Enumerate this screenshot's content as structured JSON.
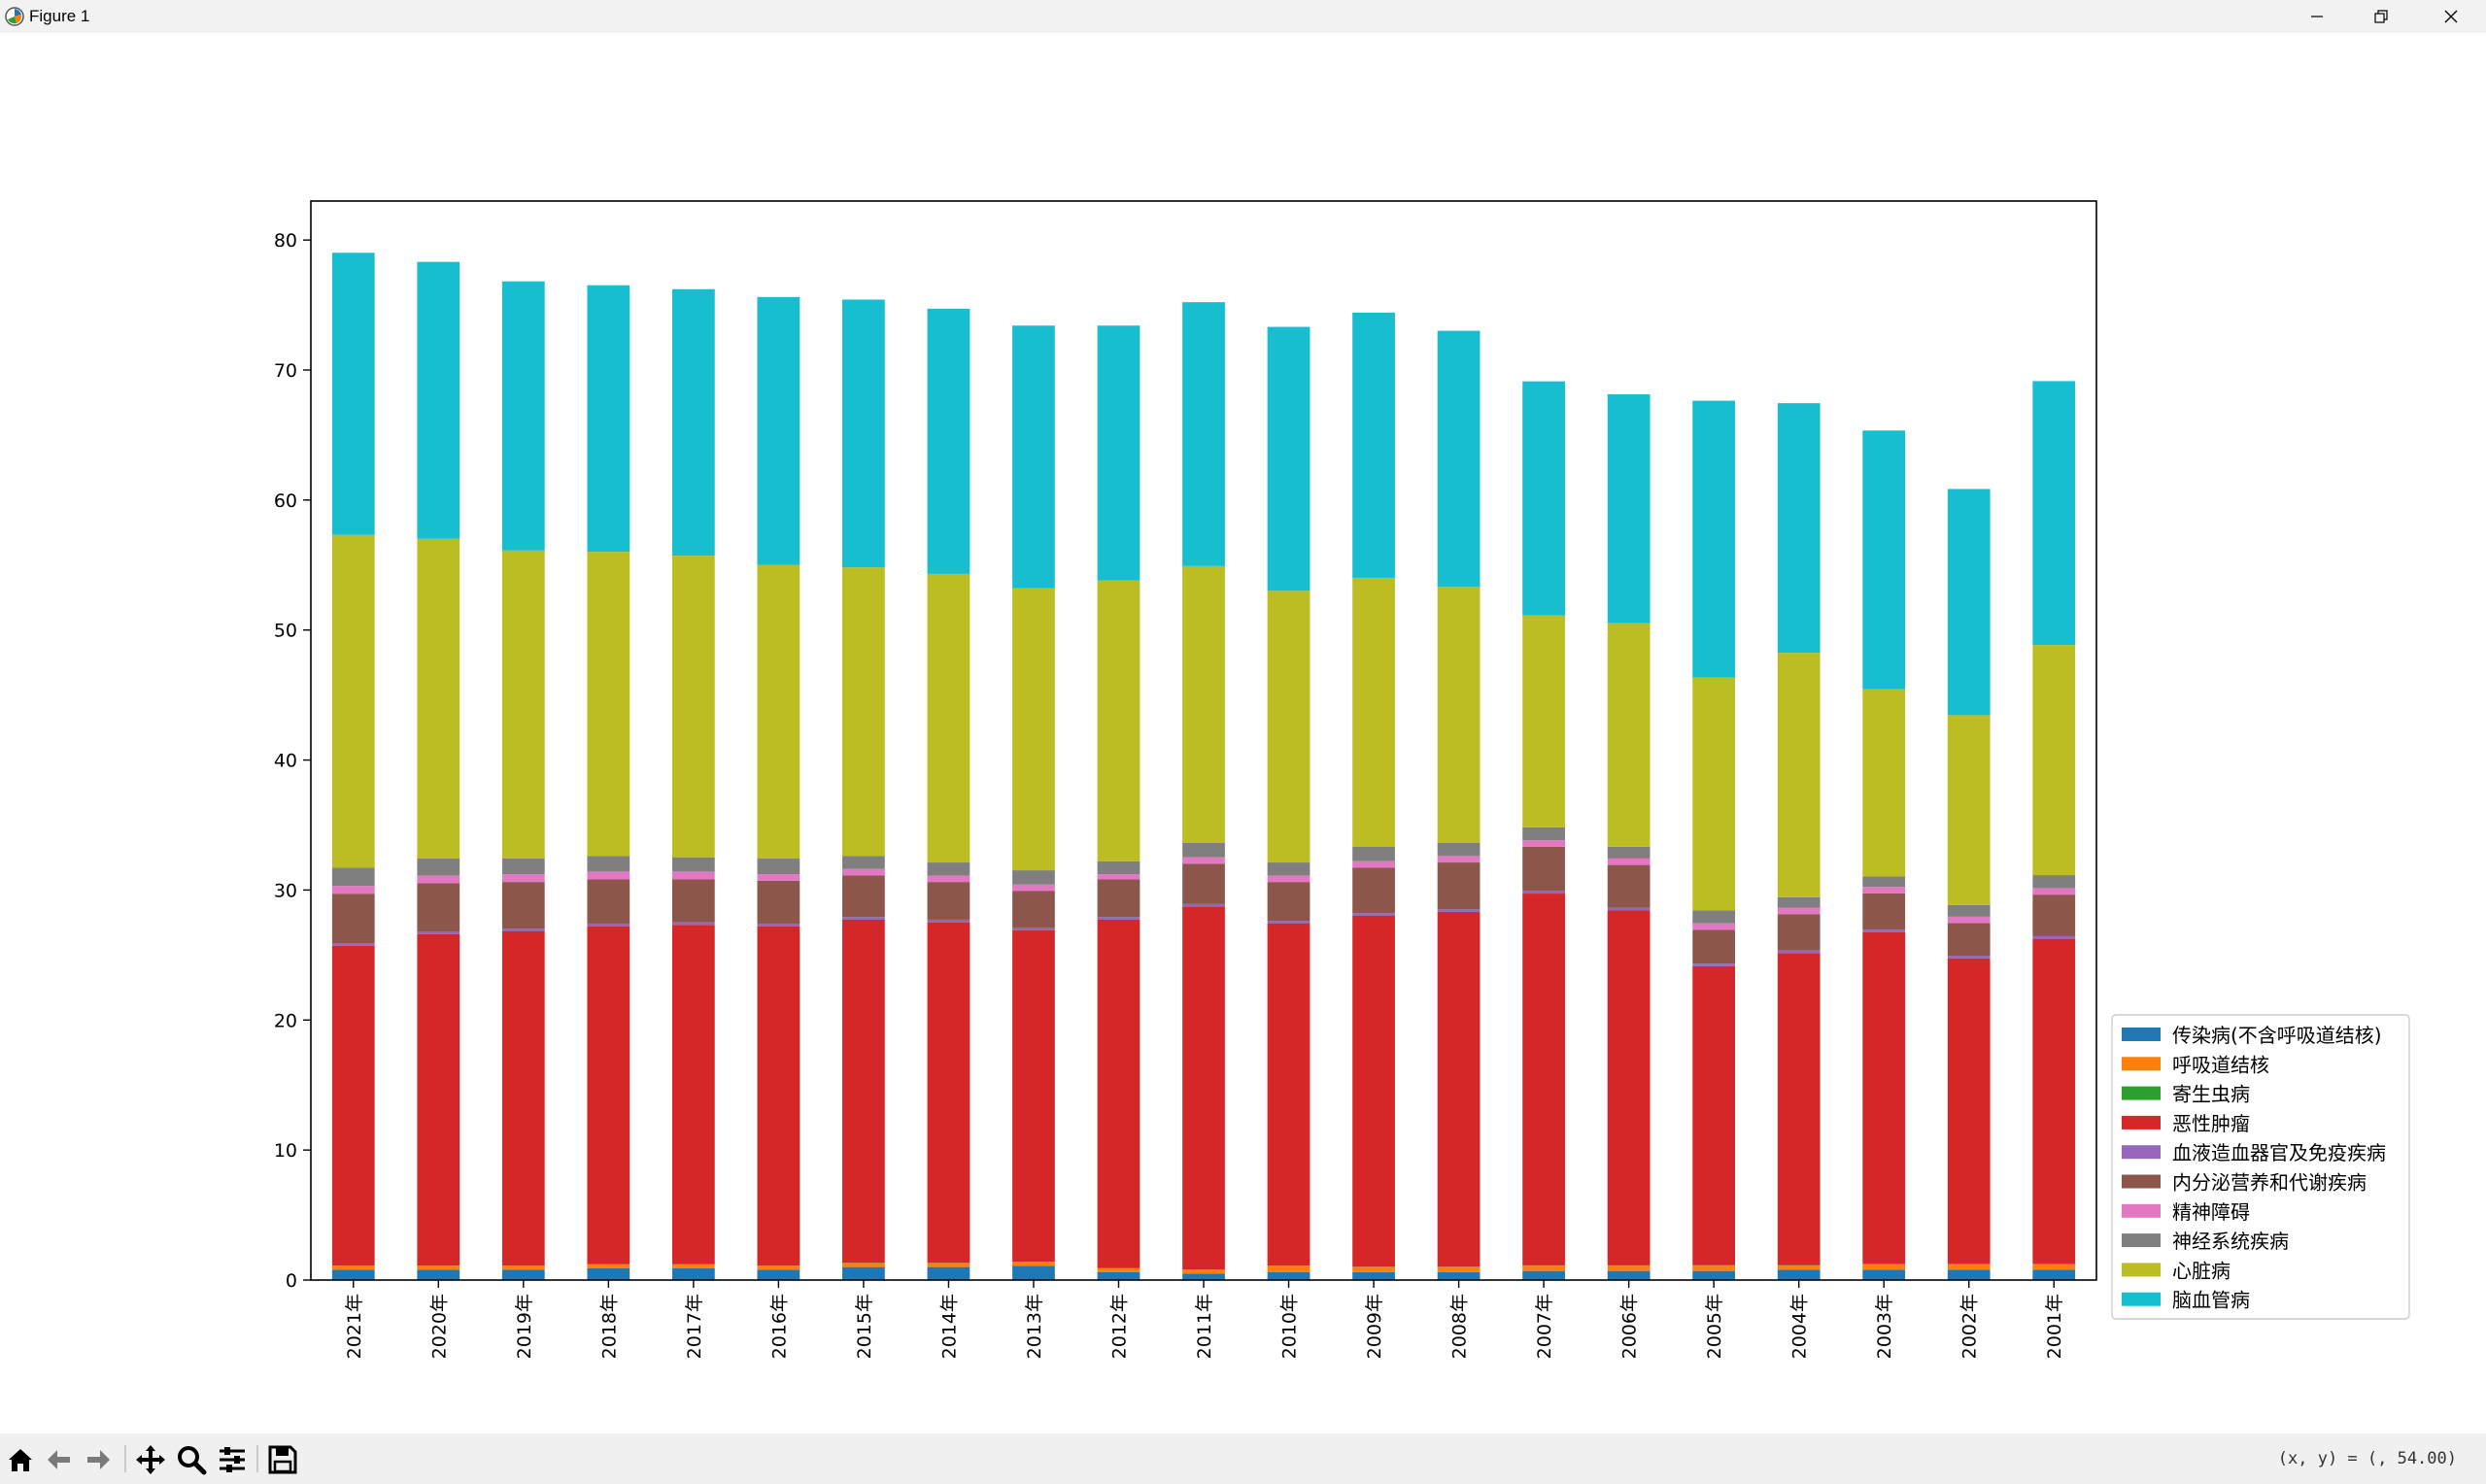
{
  "window": {
    "title": "Figure 1"
  },
  "toolbar": {
    "buttons": [
      "home-icon",
      "back-icon",
      "forward-icon",
      "pan-icon",
      "zoom-icon",
      "configure-subplots-icon",
      "save-icon"
    ],
    "coord_readout": "(x, y) = (, 54.00)"
  },
  "chart_data": {
    "type": "bar",
    "stacked": true,
    "title": "",
    "xlabel": "",
    "ylabel": "",
    "ylim": [
      0,
      83
    ],
    "yticks": [
      0,
      10,
      20,
      30,
      40,
      50,
      60,
      70,
      80
    ],
    "legend_position": "lower right, outside axes",
    "categories": [
      "2021年",
      "2020年",
      "2019年",
      "2018年",
      "2017年",
      "2016年",
      "2015年",
      "2014年",
      "2013年",
      "2012年",
      "2011年",
      "2010年",
      "2009年",
      "2008年",
      "2007年",
      "2006年",
      "2005年",
      "2004年",
      "2003年",
      "2002年",
      "2001年"
    ],
    "series": [
      {
        "name": "传染病(不含呼吸道结核)",
        "color": "#1f77b4",
        "values": [
          0.8,
          0.8,
          0.8,
          0.9,
          0.9,
          0.8,
          1.0,
          1.0,
          1.1,
          0.6,
          0.5,
          0.6,
          0.6,
          0.6,
          0.7,
          0.7,
          0.7,
          0.8,
          0.8,
          0.8,
          0.8
        ]
      },
      {
        "name": "呼吸道结核",
        "color": "#ff7f0e",
        "values": [
          0.3,
          0.3,
          0.3,
          0.3,
          0.3,
          0.3,
          0.3,
          0.3,
          0.3,
          0.3,
          0.3,
          0.5,
          0.4,
          0.4,
          0.4,
          0.4,
          0.4,
          0.3,
          0.4,
          0.4,
          0.4
        ]
      },
      {
        "name": "寄生虫病",
        "color": "#2ca02c",
        "values": [
          0.02,
          0.02,
          0.02,
          0.02,
          0.02,
          0.02,
          0.02,
          0.02,
          0.02,
          0.02,
          0.02,
          0.02,
          0.02,
          0.02,
          0.03,
          0.03,
          0.04,
          0.05,
          0.05,
          0.05,
          0.05
        ]
      },
      {
        "name": "恶性肿瘤",
        "color": "#d62728",
        "values": [
          24.6,
          25.5,
          25.7,
          26.0,
          26.1,
          26.1,
          26.4,
          26.2,
          25.5,
          26.8,
          27.9,
          26.3,
          27.0,
          27.3,
          28.6,
          27.3,
          23.0,
          24.0,
          25.5,
          23.5,
          25.0
        ]
      },
      {
        "name": "血液造血器官及免疫疾病",
        "color": "#9467bd",
        "values": [
          0.2,
          0.2,
          0.2,
          0.2,
          0.2,
          0.2,
          0.2,
          0.2,
          0.2,
          0.2,
          0.2,
          0.2,
          0.2,
          0.2,
          0.2,
          0.2,
          0.2,
          0.2,
          0.2,
          0.2,
          0.2
        ]
      },
      {
        "name": "内分泌营养和代谢疾病",
        "color": "#8c564b",
        "values": [
          3.8,
          3.7,
          3.6,
          3.4,
          3.3,
          3.3,
          3.2,
          2.9,
          2.8,
          2.9,
          3.1,
          3.0,
          3.5,
          3.6,
          3.4,
          3.3,
          2.6,
          2.8,
          2.8,
          2.5,
          3.2
        ]
      },
      {
        "name": "精神障碍",
        "color": "#e377c2",
        "values": [
          0.6,
          0.6,
          0.6,
          0.6,
          0.6,
          0.5,
          0.5,
          0.5,
          0.5,
          0.4,
          0.5,
          0.5,
          0.5,
          0.5,
          0.5,
          0.5,
          0.5,
          0.5,
          0.5,
          0.5,
          0.5
        ]
      },
      {
        "name": "神经系统疾病",
        "color": "#7f7f7f",
        "values": [
          1.4,
          1.3,
          1.2,
          1.2,
          1.1,
          1.2,
          1.0,
          1.0,
          1.1,
          1.0,
          1.1,
          1.0,
          1.1,
          1.0,
          1.0,
          0.9,
          1.0,
          0.8,
          0.8,
          0.9,
          1.0
        ]
      },
      {
        "name": "心脏病",
        "color": "#bcbd22",
        "values": [
          25.6,
          24.6,
          23.7,
          23.4,
          23.2,
          22.6,
          22.2,
          22.2,
          21.7,
          21.6,
          21.3,
          20.9,
          20.7,
          19.7,
          16.3,
          17.2,
          17.9,
          18.8,
          14.4,
          14.6,
          17.7
        ]
      },
      {
        "name": "脑血管病",
        "color": "#17becf",
        "values": [
          21.7,
          21.3,
          20.7,
          20.5,
          20.5,
          20.6,
          20.6,
          20.4,
          20.2,
          19.6,
          20.3,
          20.3,
          20.4,
          19.7,
          18.0,
          17.6,
          21.3,
          19.2,
          19.9,
          17.4,
          20.3
        ]
      }
    ]
  }
}
